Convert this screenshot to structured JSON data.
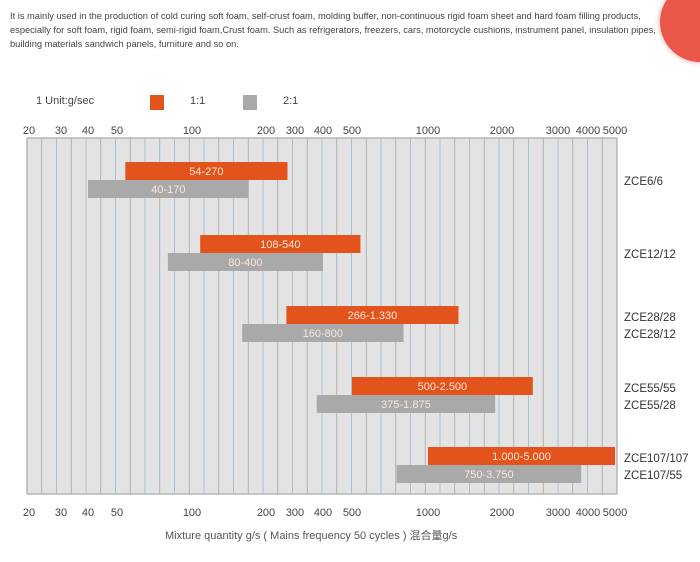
{
  "intro": [
    "It is mainly used in the production of cold curing soft foam, self-crust foam, molding buffer, non-continuous rigid foam sheet and hard foam filling products,",
    "especially for soft foam, rigid foam, semi-rigid foam,Crust foam. Such as refrigerators, freezers, cars, motorcycle cushions, instrument panel, insulation pipes,",
    "building materials sandwich panels, furniture and so on."
  ],
  "colors": {
    "ratio_1_1": "#e2541b",
    "ratio_2_1": "#a9a9a9",
    "grid_bg": "#e3e3e3"
  },
  "chart_data": {
    "type": "bar",
    "orientation": "horizontal-range",
    "unit_label": "1 Unit:g/sec",
    "legend": [
      {
        "name": "1:1",
        "color": "#e2541b"
      },
      {
        "name": "2:1",
        "color": "#a9a9a9"
      }
    ],
    "legend_placement": "top-left",
    "x_scale": "log",
    "xlim": [
      20,
      5000
    ],
    "x_ticks": [
      20,
      30,
      40,
      50,
      100,
      200,
      300,
      400,
      500,
      1000,
      2000,
      3000,
      4000,
      5000
    ],
    "xlabel": "Mixture quantity g/s ( Mains frequency 50 cycles ) 混合量g/s",
    "grid": true,
    "groups": [
      {
        "labels": [
          "ZCE6/6"
        ],
        "bars": [
          {
            "series": "1:1",
            "min": 54,
            "max": 270,
            "label": "54-270"
          },
          {
            "series": "2:1",
            "min": 40,
            "max": 170,
            "label": "40-170"
          }
        ]
      },
      {
        "labels": [
          "ZCE12/12"
        ],
        "bars": [
          {
            "series": "1:1",
            "min": 108,
            "max": 540,
            "label": "108-540"
          },
          {
            "series": "2:1",
            "min": 80,
            "max": 400,
            "label": "80-400"
          }
        ]
      },
      {
        "labels": [
          "ZCE28/28",
          "ZCE28/12"
        ],
        "bars": [
          {
            "series": "1:1",
            "min": 266,
            "max": 1330,
            "label": "266-1.330"
          },
          {
            "series": "2:1",
            "min": 160,
            "max": 800,
            "label": "160-800"
          }
        ]
      },
      {
        "labels": [
          "ZCE55/55",
          "ZCE55/28"
        ],
        "bars": [
          {
            "series": "1:1",
            "min": 500,
            "max": 2500,
            "label": "500-2.500"
          },
          {
            "series": "2:1",
            "min": 375,
            "max": 1875,
            "label": "375-1.875"
          }
        ]
      },
      {
        "labels": [
          "ZCE107/107",
          "ZCE107/55"
        ],
        "bars": [
          {
            "series": "1:1",
            "min": 1000,
            "max": 5000,
            "label": "1.000-5.000"
          },
          {
            "series": "2:1",
            "min": 750,
            "max": 3750,
            "label": "750-3.750"
          }
        ]
      }
    ]
  }
}
